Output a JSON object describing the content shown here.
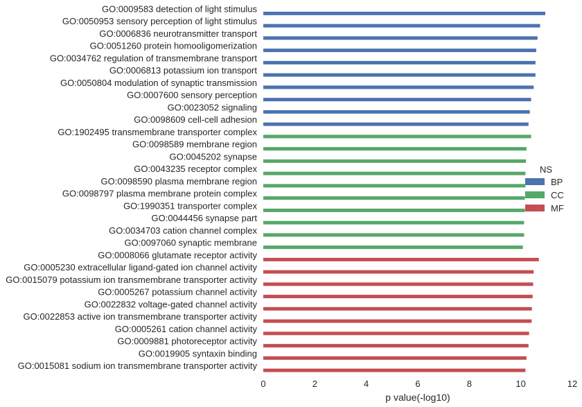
{
  "chart_data": {
    "type": "bar",
    "orientation": "horizontal",
    "xlabel": "p value(-log10)",
    "xlim": [
      0,
      12
    ],
    "xticks": [
      "0",
      "2",
      "4",
      "6",
      "8",
      "10",
      "12"
    ],
    "grid": false,
    "legend": {
      "title": "NS",
      "placement": "right",
      "entries": [
        {
          "name": "BP",
          "color": "#4c72b0"
        },
        {
          "name": "CC",
          "color": "#55a868"
        },
        {
          "name": "MF",
          "color": "#c44e52"
        }
      ]
    },
    "series": [
      {
        "name": "BP",
        "color": "#4c72b0",
        "categories": [
          "GO:0009583 detection of light stimulus",
          "GO:0050953 sensory perception of light stimulus",
          "GO:0006836 neurotransmitter transport",
          "GO:0051260 protein homooligomerization",
          "GO:0034762 regulation of transmembrane transport",
          "GO:0006813 potassium ion transport",
          "GO:0050804 modulation of synaptic transmission",
          "GO:0007600 sensory perception",
          "GO:0023052 signaling",
          "GO:0098609 cell-cell adhesion"
        ],
        "values": [
          10.95,
          10.75,
          10.65,
          10.6,
          10.57,
          10.57,
          10.5,
          10.4,
          10.35,
          10.3
        ]
      },
      {
        "name": "CC",
        "color": "#55a868",
        "categories": [
          "GO:1902495 transmembrane transporter complex",
          "GO:0098589 membrane region",
          "GO:0045202 synapse",
          "GO:0043235 receptor complex",
          "GO:0098590 plasma membrane region",
          "GO:0098797 plasma membrane protein complex",
          "GO:1990351 transporter complex",
          "GO:0044456 synapse part",
          "GO:0034703 cation channel complex",
          "GO:0097060 synaptic membrane"
        ],
        "values": [
          10.4,
          10.22,
          10.2,
          10.18,
          10.18,
          10.16,
          10.16,
          10.13,
          10.13,
          10.08
        ]
      },
      {
        "name": "MF",
        "color": "#c44e52",
        "categories": [
          "GO:0008066 glutamate receptor activity",
          "GO:0005230 extracellular ligand-gated ion channel activity",
          "GO:0015079 potassium ion transmembrane transporter activity",
          "GO:0005267 potassium channel activity",
          "GO:0022832 voltage-gated channel activity",
          "GO:0022853 active ion transmembrane transporter activity",
          "GO:0005261 cation channel activity",
          "GO:0009881 photoreceptor activity",
          "GO:0019905 syntaxin binding",
          "GO:0015081 sodium ion transmembrane transporter activity"
        ],
        "values": [
          10.7,
          10.5,
          10.48,
          10.46,
          10.43,
          10.42,
          10.32,
          10.3,
          10.22,
          10.18
        ]
      }
    ]
  }
}
